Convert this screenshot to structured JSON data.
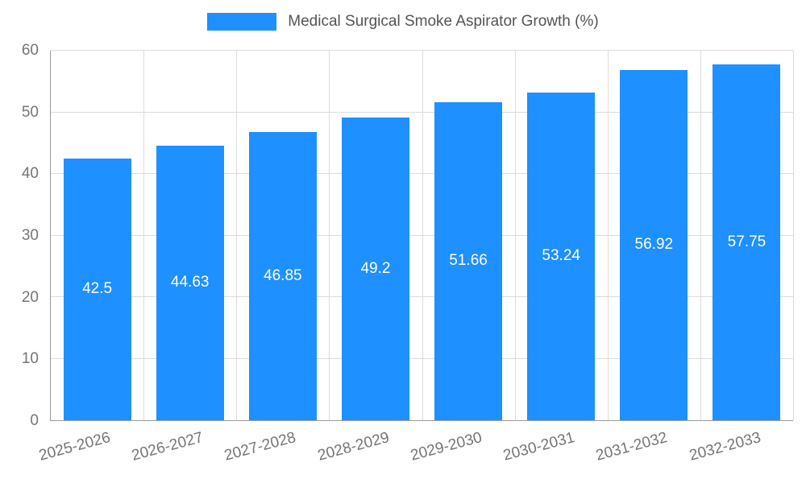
{
  "chart_data": {
    "type": "bar",
    "title": "Medical Surgical Smoke Aspirator Growth (%)",
    "categories": [
      "2025-2026",
      "2026-2027",
      "2027-2028",
      "2028-2029",
      "2029-2030",
      "2030-2031",
      "2031-2032",
      "2032-2033"
    ],
    "values": [
      42.5,
      44.63,
      46.85,
      49.2,
      51.66,
      53.24,
      56.92,
      57.75
    ],
    "xlabel": "",
    "ylabel": "",
    "ylim": [
      0,
      60
    ],
    "yticks": [
      0,
      10,
      20,
      30,
      40,
      50,
      60
    ],
    "grid": true,
    "legend_position": "top",
    "bar_label_position": "inside-center"
  },
  "colors": {
    "bar": "#1E90FF",
    "bar_label": "#ffffff",
    "axis_text": "#757575",
    "title_text": "#545454",
    "gridline": "#dcdcdc",
    "axis_line": "#9a9a9a",
    "background": "#ffffff"
  }
}
